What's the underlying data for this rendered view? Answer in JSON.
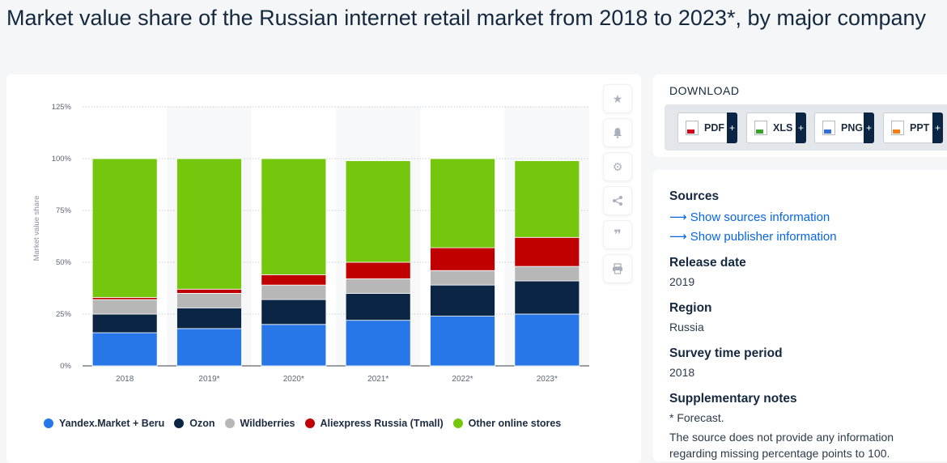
{
  "page": {
    "title": "Market value share of the Russian internet retail market from 2018 to 2023*, by major company"
  },
  "toolbar": {
    "icons": [
      "star-icon",
      "bell-icon",
      "gear-icon",
      "share-icon",
      "quote-icon",
      "print-icon"
    ]
  },
  "download": {
    "title": "DOWNLOAD",
    "buttons": [
      {
        "label": "PDF",
        "plus": "+",
        "color": "#d0021b"
      },
      {
        "label": "XLS",
        "plus": "+",
        "color": "#3ba12a"
      },
      {
        "label": "PNG",
        "plus": "+",
        "color": "#2f6fd6"
      },
      {
        "label": "PPT",
        "plus": "+",
        "color": "#f07f18"
      }
    ]
  },
  "info": {
    "sources_heading": "Sources",
    "show_sources": "Show sources information",
    "show_publisher": "Show publisher information",
    "release_heading": "Release date",
    "release_value": "2019",
    "region_heading": "Region",
    "region_value": "Russia",
    "survey_heading": "Survey time period",
    "survey_value": "2018",
    "notes_heading": "Supplementary notes",
    "notes_forecast": "* Forecast.",
    "notes_text": "The source does not provide any information regarding missing percentage points to 100."
  },
  "chart_data": {
    "type": "bar",
    "stacked": true,
    "categories": [
      "2018",
      "2019*",
      "2020*",
      "2021*",
      "2022*",
      "2023*"
    ],
    "ylabel": "Market value share",
    "ylim": [
      0,
      125
    ],
    "yticks": [
      "0%",
      "25%",
      "50%",
      "75%",
      "100%",
      "125%"
    ],
    "grid": true,
    "legend_position": "bottom",
    "series": [
      {
        "name": "Yandex.Market + Beru",
        "color": "#2877e8",
        "values": [
          16,
          18,
          20,
          22,
          24,
          25
        ]
      },
      {
        "name": "Ozon",
        "color": "#0b2545",
        "values": [
          9,
          10,
          12,
          13,
          15,
          16
        ]
      },
      {
        "name": "Wildberries",
        "color": "#b7b7b8",
        "values": [
          7,
          7,
          7,
          7,
          7,
          7
        ]
      },
      {
        "name": "Aliexpress Russia (Tmall)",
        "color": "#c00000",
        "values": [
          1,
          2,
          5,
          8,
          11,
          14
        ]
      },
      {
        "name": "Other online stores",
        "color": "#74c70c",
        "values": [
          67,
          63,
          56,
          49,
          43,
          37
        ]
      }
    ]
  }
}
